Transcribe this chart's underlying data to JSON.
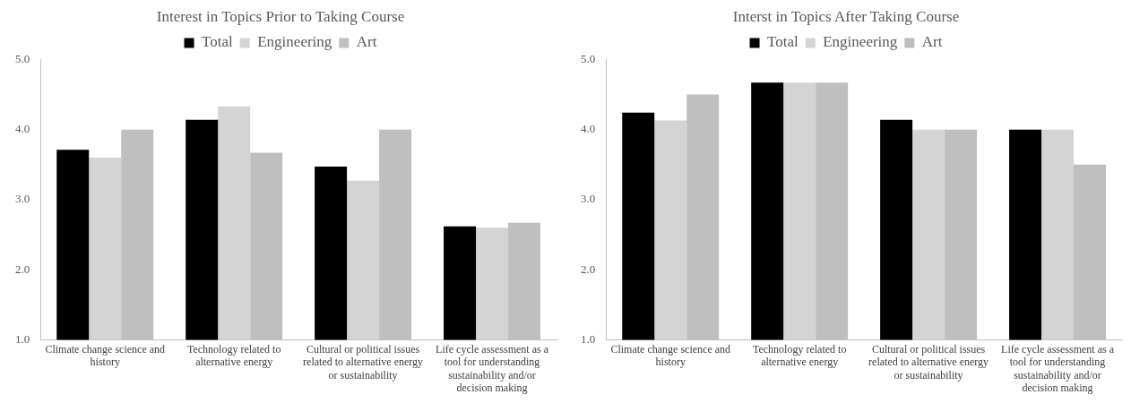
{
  "chart_data": [
    {
      "type": "bar",
      "title": "Interest in Topics Prior to Taking Course",
      "categories": [
        "Climate change science and history",
        "Technology related to alternative energy",
        "Cultural or political issues related to alternative energy or sustainability",
        "Life cycle assessment as a tool for understanding sustainability and/or decision making"
      ],
      "series": [
        {
          "name": "Total",
          "color": "#000000",
          "values": [
            3.71,
            4.14,
            3.47,
            2.62
          ]
        },
        {
          "name": "Engineering",
          "color": "#d4d4d4",
          "values": [
            3.6,
            4.33,
            3.27,
            2.6
          ]
        },
        {
          "name": "Art",
          "color": "#bfbfbf",
          "values": [
            4.0,
            3.67,
            4.0,
            2.67
          ]
        }
      ],
      "ylim": [
        1,
        5
      ],
      "yticks": [
        {
          "value": 1,
          "label": "1.0"
        },
        {
          "value": 2,
          "label": "2.0"
        },
        {
          "value": 3,
          "label": "3.0"
        },
        {
          "value": 4,
          "label": "4.0"
        },
        {
          "value": 5,
          "label": "5.0"
        }
      ],
      "grid": false,
      "legend": "top"
    },
    {
      "type": "bar",
      "title": "Interst in Topics After Taking Course",
      "categories": [
        "Climate change science and history",
        "Technology related to alternative energy",
        "Cultural or political issues related to alternative energy or sustainability",
        "Life cycle assessment as a tool for understanding sustainability and/or decision making"
      ],
      "series": [
        {
          "name": "Total",
          "color": "#000000",
          "values": [
            4.24,
            4.67,
            4.14,
            4.0
          ]
        },
        {
          "name": "Engineering",
          "color": "#d4d4d4",
          "values": [
            4.13,
            4.67,
            4.0,
            4.0
          ]
        },
        {
          "name": "Art",
          "color": "#bfbfbf",
          "values": [
            4.5,
            4.67,
            4.0,
            3.5
          ]
        }
      ],
      "ylim": [
        1,
        5
      ],
      "yticks": [
        {
          "value": 1,
          "label": "1.0"
        },
        {
          "value": 2,
          "label": "2.0"
        },
        {
          "value": 3,
          "label": "3.0"
        },
        {
          "value": 4,
          "label": "4.0"
        },
        {
          "value": 5,
          "label": "5.0"
        }
      ],
      "grid": false,
      "legend": "top"
    }
  ]
}
